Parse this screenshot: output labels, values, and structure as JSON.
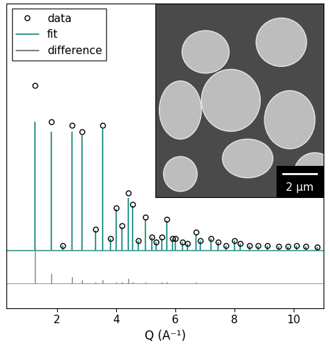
{
  "chart_data": {
    "type": "line",
    "xlabel": "Q (A⁻¹)",
    "xlim": [
      0.3,
      11.0
    ],
    "xticks": [
      2,
      4,
      6,
      8,
      10
    ],
    "ylim": [
      -0.35,
      1.5
    ],
    "tick_labels": "x",
    "legend": "upper left",
    "x": [
      1.25,
      1.8,
      2.2,
      2.5,
      2.85,
      3.3,
      3.55,
      3.8,
      4.0,
      4.2,
      4.4,
      4.55,
      4.75,
      5.0,
      5.2,
      5.35,
      5.55,
      5.7,
      5.9,
      6.0,
      6.25,
      6.4,
      6.7,
      6.85,
      7.2,
      7.45,
      7.7,
      8.0,
      8.2,
      8.5,
      8.8,
      9.1,
      9.5,
      9.8,
      10.1,
      10.4,
      10.8
    ],
    "series": [
      {
        "name": "data",
        "type": "scatter",
        "color": "#000000",
        "marker": "circle",
        "values": [
          1.0,
          0.78,
          0.03,
          0.76,
          0.72,
          0.13,
          0.76,
          0.07,
          0.26,
          0.15,
          0.35,
          0.28,
          0.06,
          0.2,
          0.08,
          0.05,
          0.08,
          0.19,
          0.07,
          0.07,
          0.05,
          0.04,
          0.11,
          0.06,
          0.07,
          0.05,
          0.03,
          0.06,
          0.04,
          0.03,
          0.03,
          0.03,
          0.025,
          0.025,
          0.03,
          0.025,
          0.02
        ]
      },
      {
        "name": "fit",
        "type": "line",
        "color": "#3a9a92",
        "values": [
          0.78,
          0.72,
          0.03,
          0.72,
          0.7,
          0.12,
          0.74,
          0.07,
          0.25,
          0.14,
          0.32,
          0.27,
          0.06,
          0.19,
          0.08,
          0.05,
          0.07,
          0.18,
          0.07,
          0.07,
          0.05,
          0.04,
          0.1,
          0.06,
          0.07,
          0.05,
          0.03,
          0.06,
          0.04,
          0.03,
          0.03,
          0.03,
          0.025,
          0.025,
          0.03,
          0.025,
          0.02
        ]
      },
      {
        "name": "difference",
        "type": "line",
        "color": "#808080",
        "offset": -0.2,
        "values": [
          0.22,
          0.06,
          0.0,
          0.04,
          0.02,
          0.01,
          0.02,
          0.0,
          0.01,
          0.01,
          0.03,
          0.01,
          0.0,
          0.01,
          0.0,
          0.0,
          0.01,
          0.01,
          0.0,
          0.0,
          0.0,
          0.0,
          0.01,
          0.0,
          0.0,
          0.0,
          0.0,
          0.0,
          0.0,
          0.0,
          0.0,
          0.0,
          0.0,
          0.0,
          0.0,
          0.0,
          0.0
        ]
      }
    ],
    "inset": {
      "scale_bar": "2 µm"
    }
  }
}
